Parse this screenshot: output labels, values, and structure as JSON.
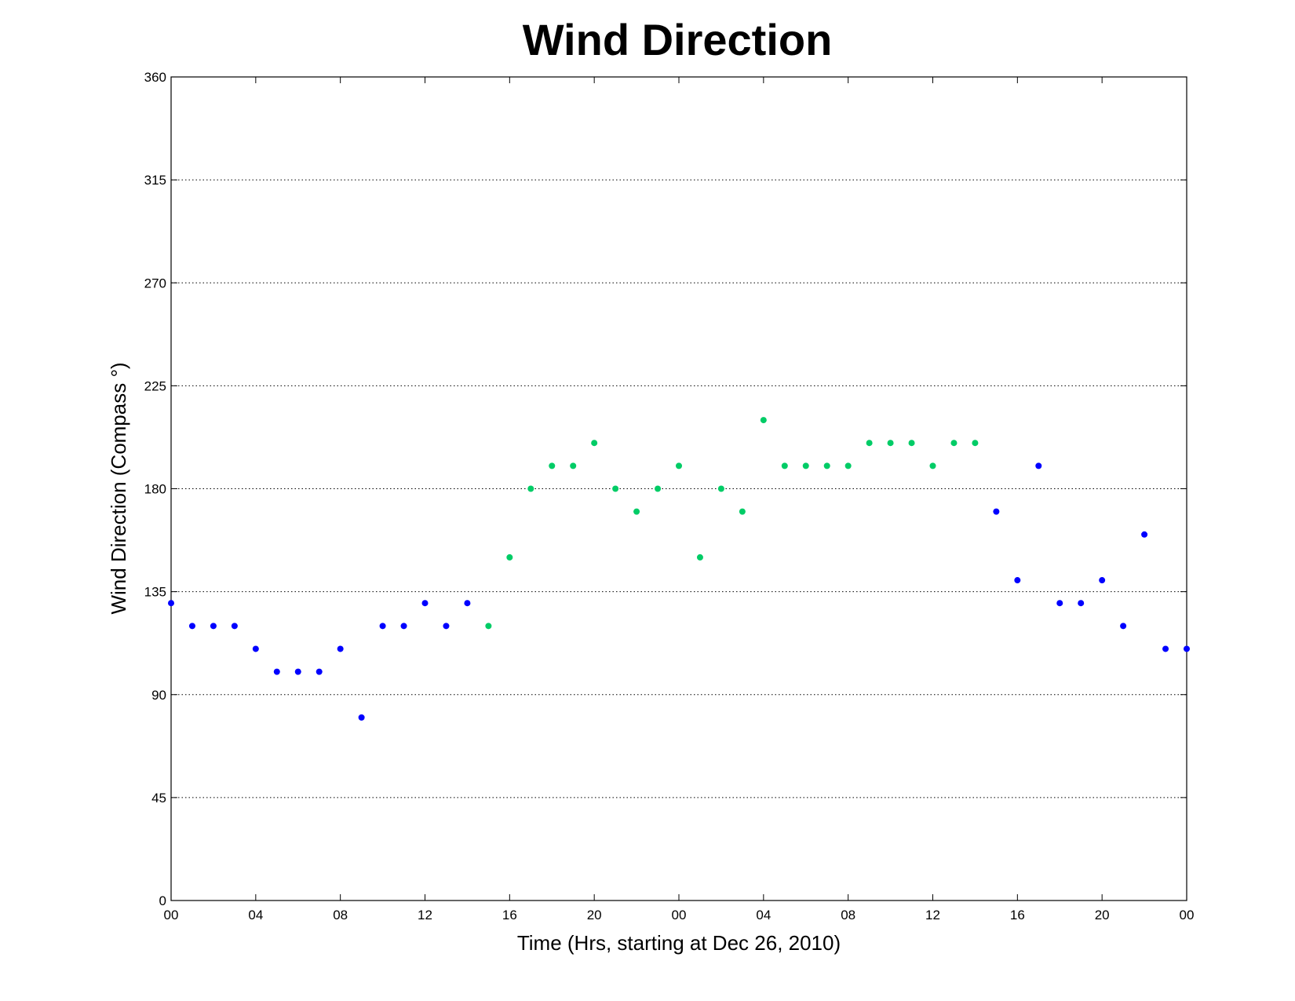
{
  "chart_data": {
    "type": "scatter",
    "title": "Wind Direction",
    "xlabel": "Time (Hrs, starting at Dec 26, 2010)",
    "ylabel": "Wind Direction (Compass  °)",
    "ylim": [
      0,
      360
    ],
    "yticks": [
      0,
      45,
      90,
      135,
      180,
      225,
      270,
      315,
      360
    ],
    "xlim": [
      "2010-12-26 00:00",
      "2010-12-28 00:00"
    ],
    "xticks": [
      {
        "time": "2010-12-26 00:00",
        "label": "00"
      },
      {
        "time": "2010-12-26 04:00",
        "label": "04"
      },
      {
        "time": "2010-12-26 08:00",
        "label": "08"
      },
      {
        "time": "2010-12-26 12:00",
        "label": "12"
      },
      {
        "time": "2010-12-26 16:00",
        "label": "16"
      },
      {
        "time": "2010-12-26 20:00",
        "label": "20"
      },
      {
        "time": "2010-12-27 00:00",
        "label": "00"
      },
      {
        "time": "2010-12-27 04:00",
        "label": "04"
      },
      {
        "time": "2010-12-27 08:00",
        "label": "08"
      },
      {
        "time": "2010-12-27 12:00",
        "label": "12"
      },
      {
        "time": "2010-12-27 16:00",
        "label": "16"
      },
      {
        "time": "2010-12-27 20:00",
        "label": "20"
      },
      {
        "time": "2010-12-28 00:00",
        "label": "00"
      }
    ],
    "grid": "horizontal dotted",
    "series": [
      {
        "color": "#0000ff",
        "points": [
          {
            "x": "2010-12-26 00:00",
            "y": 130
          },
          {
            "x": "2010-12-26 01:00",
            "y": 120
          },
          {
            "x": "2010-12-26 02:00",
            "y": 120
          },
          {
            "x": "2010-12-26 03:00",
            "y": 120
          },
          {
            "x": "2010-12-26 04:00",
            "y": 110
          },
          {
            "x": "2010-12-26 05:00",
            "y": 100
          },
          {
            "x": "2010-12-26 06:00",
            "y": 100
          },
          {
            "x": "2010-12-26 07:00",
            "y": 100
          },
          {
            "x": "2010-12-26 08:00",
            "y": 110
          },
          {
            "x": "2010-12-26 09:00",
            "y": 80
          },
          {
            "x": "2010-12-26 10:00",
            "y": 120
          },
          {
            "x": "2010-12-26 11:00",
            "y": 120
          },
          {
            "x": "2010-12-26 12:00",
            "y": 130
          },
          {
            "x": "2010-12-26 13:00",
            "y": 120
          },
          {
            "x": "2010-12-26 14:00",
            "y": 130
          },
          {
            "x": "2010-12-27 15:00",
            "y": 170
          },
          {
            "x": "2010-12-27 16:00",
            "y": 140
          },
          {
            "x": "2010-12-27 17:00",
            "y": 190
          },
          {
            "x": "2010-12-27 18:00",
            "y": 130
          },
          {
            "x": "2010-12-27 19:00",
            "y": 130
          },
          {
            "x": "2010-12-27 20:00",
            "y": 140
          },
          {
            "x": "2010-12-27 21:00",
            "y": 120
          },
          {
            "x": "2010-12-27 22:00",
            "y": 160
          },
          {
            "x": "2010-12-27 23:00",
            "y": 110
          },
          {
            "x": "2010-12-28 00:00",
            "y": 110
          }
        ]
      },
      {
        "color": "#00cc66",
        "points": [
          {
            "x": "2010-12-26 15:00",
            "y": 120
          },
          {
            "x": "2010-12-26 16:00",
            "y": 150
          },
          {
            "x": "2010-12-26 17:00",
            "y": 180
          },
          {
            "x": "2010-12-26 18:00",
            "y": 190
          },
          {
            "x": "2010-12-26 19:00",
            "y": 190
          },
          {
            "x": "2010-12-26 20:00",
            "y": 200
          },
          {
            "x": "2010-12-26 21:00",
            "y": 180
          },
          {
            "x": "2010-12-26 22:00",
            "y": 170
          },
          {
            "x": "2010-12-26 23:00",
            "y": 180
          },
          {
            "x": "2010-12-27 00:00",
            "y": 190
          },
          {
            "x": "2010-12-27 01:00",
            "y": 150
          },
          {
            "x": "2010-12-27 02:00",
            "y": 180
          },
          {
            "x": "2010-12-27 03:00",
            "y": 170
          },
          {
            "x": "2010-12-27 04:00",
            "y": 210
          },
          {
            "x": "2010-12-27 05:00",
            "y": 190
          },
          {
            "x": "2010-12-27 06:00",
            "y": 190
          },
          {
            "x": "2010-12-27 07:00",
            "y": 190
          },
          {
            "x": "2010-12-27 08:00",
            "y": 190
          },
          {
            "x": "2010-12-27 09:00",
            "y": 200
          },
          {
            "x": "2010-12-27 10:00",
            "y": 200
          },
          {
            "x": "2010-12-27 11:00",
            "y": 200
          },
          {
            "x": "2010-12-27 12:00",
            "y": 190
          },
          {
            "x": "2010-12-27 13:00",
            "y": 200
          },
          {
            "x": "2010-12-27 14:00",
            "y": 200
          }
        ]
      }
    ]
  }
}
